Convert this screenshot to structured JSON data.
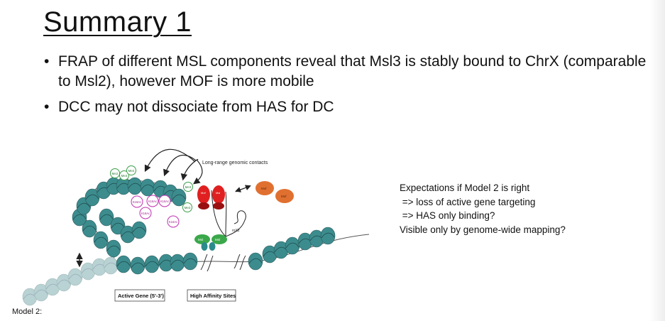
{
  "slide": {
    "title": "Summary 1",
    "bullets": [
      "FRAP of different MSL components reveal that Msl3 is stably bound to ChrX (comparable to Msl2), however MOF is more mobile",
      "DCC may not dissociate from HAS for DC"
    ]
  },
  "figure": {
    "contacts_label": "Long-range genomic contacts",
    "active_gene_label": "Active Gene (5'-3')",
    "has_label": "High Affinity Sites",
    "rox_label": "roX2",
    "me2_label": "Me2",
    "me3_label": "Me3",
    "k16_label": "K16Ac",
    "mof_label": "Mof",
    "msl_label": "Msl"
  },
  "expectations": {
    "lines": [
      "Expectations if Model 2 is right",
      " => loss of active gene targeting",
      " => HAS only binding?",
      "Visible only by genome-wide mapping?"
    ]
  },
  "model_label": "Model 2:",
  "colors": {
    "nucleosome": "#3c8c8e",
    "nucleosome_faded": "#b9d2d3",
    "msl_red": "#e02020",
    "mof_orange": "#e07030",
    "msl_green": "#3aa84a",
    "mark_green": "#3c9e4a",
    "mark_magenta": "#c030b0"
  }
}
